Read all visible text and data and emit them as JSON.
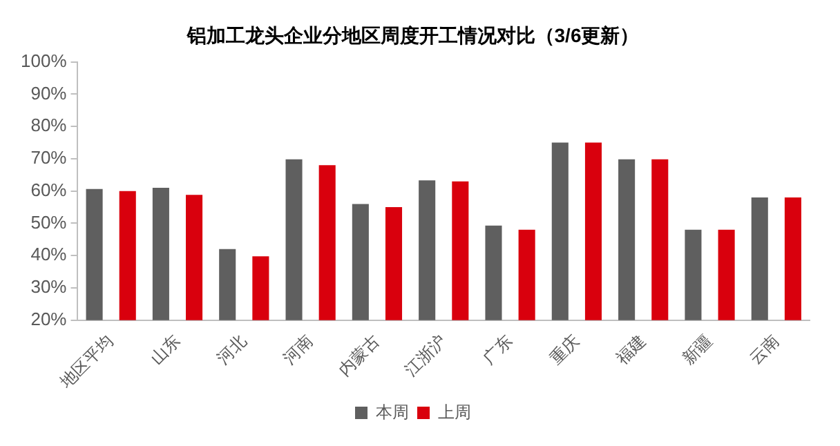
{
  "chart_data": {
    "type": "bar",
    "title": "铝加工龙头企业分地区周度开工情况对比（3/6更新）",
    "categories": [
      "地区平均",
      "山东",
      "河北",
      "河南",
      "内蒙古",
      "江浙沪",
      "广东",
      "重庆",
      "福建",
      "新疆",
      "云南"
    ],
    "series": [
      {
        "name": "本周",
        "color": "#5f5f5f",
        "values": [
          60.6,
          61,
          42,
          69.8,
          56,
          63.3,
          49.3,
          75,
          69.8,
          48,
          58
        ]
      },
      {
        "name": "上周",
        "color": "#d9000d",
        "values": [
          60,
          58.8,
          39.8,
          68,
          55,
          63,
          48,
          75,
          69.8,
          48,
          58
        ]
      }
    ],
    "ylim": [
      20,
      100
    ],
    "yticks": [
      {
        "value": 20,
        "label": "20%"
      },
      {
        "value": 30,
        "label": "30%"
      },
      {
        "value": 40,
        "label": "40%"
      },
      {
        "value": 50,
        "label": "50%"
      },
      {
        "value": 60,
        "label": "60%"
      },
      {
        "value": 70,
        "label": "70%"
      },
      {
        "value": 80,
        "label": "80%"
      },
      {
        "value": 90,
        "label": "90%"
      },
      {
        "value": 100,
        "label": "100%"
      }
    ],
    "grid": false,
    "legend": "bottom"
  }
}
